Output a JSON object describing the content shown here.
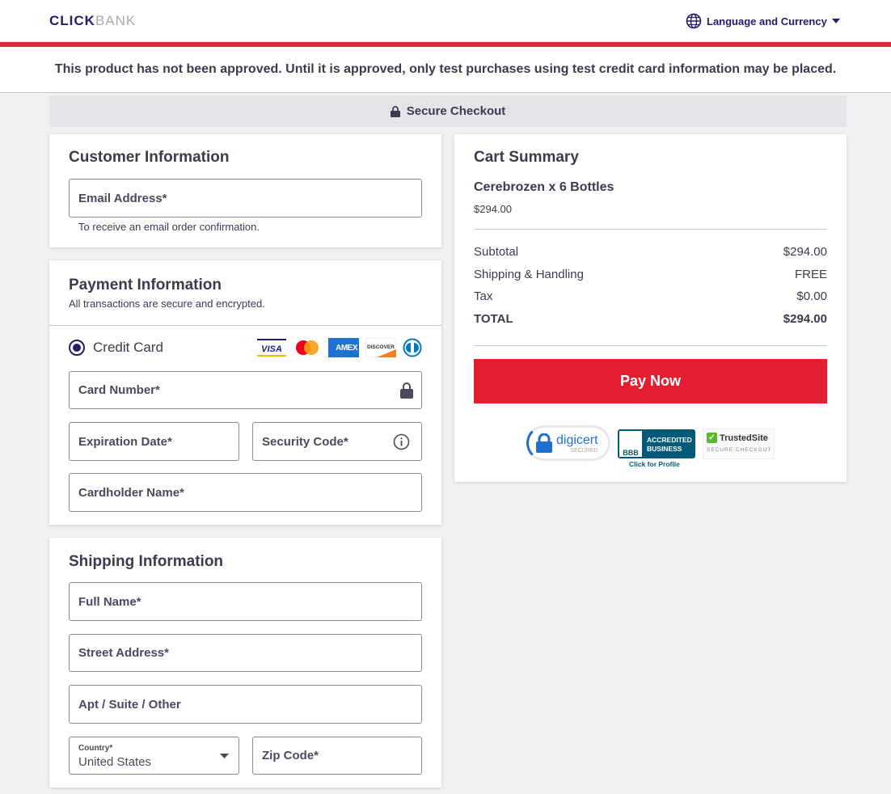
{
  "header": {
    "logo_a": "CLICK",
    "logo_b": "BANK",
    "language_label": "Language and Currency"
  },
  "notice": "This product has not been approved. Until it is approved, only test purchases using test credit card information may be placed.",
  "secure_label": "Secure Checkout",
  "customer": {
    "title": "Customer Information",
    "email_label": "Email Address*",
    "email_help": "To receive an email order confirmation."
  },
  "payment": {
    "title": "Payment Information",
    "subtitle": "All transactions are secure and encrypted.",
    "method_label": "Credit Card",
    "card_brands": [
      "VISA",
      "Mastercard",
      "AMEX",
      "DISCOVER",
      "Diners Club"
    ],
    "card_number": "Card Number*",
    "expiration": "Expiration Date*",
    "security_code": "Security Code*",
    "cardholder": "Cardholder Name*"
  },
  "shipping": {
    "title": "Shipping Information",
    "full_name": "Full Name*",
    "street": "Street Address*",
    "apt": "Apt / Suite / Other",
    "country_label": "Country*",
    "country_value": "United States",
    "zip": "Zip Code*"
  },
  "cart": {
    "title": "Cart Summary",
    "product": "Cerebrozen x 6 Bottles",
    "product_price": "$294.00",
    "lines": [
      {
        "label": "Subtotal",
        "value": "$294.00"
      },
      {
        "label": "Shipping & Handling",
        "value": "FREE"
      },
      {
        "label": "Tax",
        "value": "$0.00"
      }
    ],
    "total_label": "TOTAL",
    "total_value": "$294.00",
    "pay_label": "Pay Now",
    "badges": {
      "digicert": "digicert",
      "digicert_sub": "SECURED",
      "bbb_line1": "ACCREDITED",
      "bbb_line2": "BUSINESS",
      "bbb_link": "Click for Profile",
      "trusted": "TrustedSite",
      "trusted_sub": "SECURE CHECKOUT"
    }
  },
  "colors": {
    "brand": "#241c6c",
    "accent": "#e31e30"
  }
}
